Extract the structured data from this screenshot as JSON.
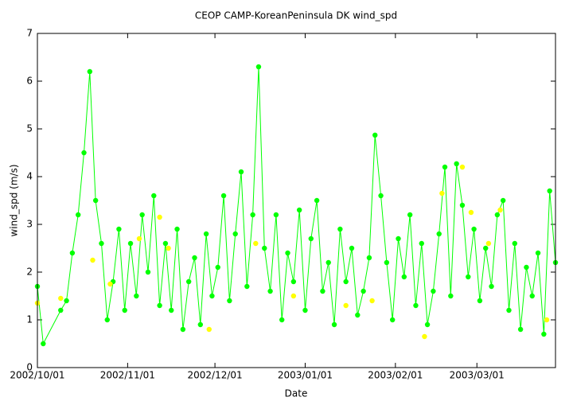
{
  "chart_data": {
    "type": "scatter",
    "title": "CEOP CAMP-KoreanPeninsula DK  wind_spd",
    "xlabel": "Date",
    "ylabel": "wind_spd (m/s)",
    "xlim": [
      "2002/10/01",
      "2003/03/28"
    ],
    "xticks": [
      "2002/10/01",
      "2002/11/01",
      "2002/12/01",
      "2003/01/01",
      "2003/02/01",
      "2003/03/01"
    ],
    "ylim": [
      0,
      7
    ],
    "yticks": [
      0,
      1,
      2,
      3,
      4,
      5,
      6,
      7
    ],
    "grid": false,
    "series": [
      {
        "color": "#00ff00",
        "mode": "lines+markers",
        "x": [
          "2002/10/01",
          "2002/10/03",
          "2002/10/09",
          "2002/10/11",
          "2002/10/13",
          "2002/10/15",
          "2002/10/17",
          "2002/10/19",
          "2002/10/21",
          "2002/10/23",
          "2002/10/25",
          "2002/10/27",
          "2002/10/29",
          "2002/10/31",
          "2002/11/02",
          "2002/11/04",
          "2002/11/06",
          "2002/11/08",
          "2002/11/10",
          "2002/11/12",
          "2002/11/14",
          "2002/11/16",
          "2002/11/18",
          "2002/11/20",
          "2002/11/22",
          "2002/11/24",
          "2002/11/26",
          "2002/11/28",
          "2002/11/30",
          "2002/12/02",
          "2002/12/04",
          "2002/12/06",
          "2002/12/08",
          "2002/12/10",
          "2002/12/12",
          "2002/12/14",
          "2002/12/16",
          "2002/12/18",
          "2002/12/20",
          "2002/12/22",
          "2002/12/24",
          "2002/12/26",
          "2002/12/28",
          "2002/12/30",
          "2003/01/01",
          "2003/01/03",
          "2003/01/05",
          "2003/01/07",
          "2003/01/09",
          "2003/01/11",
          "2003/01/13",
          "2003/01/15",
          "2003/01/17",
          "2003/01/19",
          "2003/01/21",
          "2003/01/23",
          "2003/01/25",
          "2003/01/27",
          "2003/01/29",
          "2003/01/31",
          "2003/02/02",
          "2003/02/04",
          "2003/02/06",
          "2003/02/08",
          "2003/02/10",
          "2003/02/12",
          "2003/02/14",
          "2003/02/16",
          "2003/02/18",
          "2003/02/20",
          "2003/02/22",
          "2003/02/24",
          "2003/02/26",
          "2003/02/28",
          "2003/03/02",
          "2003/03/04",
          "2003/03/06",
          "2003/03/08",
          "2003/03/10",
          "2003/03/12",
          "2003/03/14",
          "2003/03/16",
          "2003/03/18",
          "2003/03/20",
          "2003/03/22",
          "2003/03/24",
          "2003/03/26",
          "2003/03/28"
        ],
        "values": [
          1.7,
          0.5,
          1.2,
          1.4,
          2.4,
          3.2,
          4.5,
          6.2,
          3.5,
          2.6,
          1.0,
          1.8,
          2.9,
          1.2,
          2.6,
          1.5,
          3.2,
          2.0,
          3.6,
          1.3,
          2.6,
          1.2,
          2.9,
          0.8,
          1.8,
          2.3,
          0.9,
          2.8,
          1.5,
          2.1,
          3.6,
          1.4,
          2.8,
          4.1,
          1.7,
          3.2,
          6.3,
          2.5,
          1.6,
          3.2,
          1.0,
          2.4,
          1.8,
          3.3,
          1.2,
          2.7,
          3.5,
          1.6,
          2.2,
          0.9,
          2.9,
          1.8,
          2.5,
          1.1,
          1.6,
          2.3,
          4.87,
          3.6,
          2.2,
          1.0,
          2.7,
          1.9,
          3.2,
          1.3,
          2.6,
          0.9,
          1.6,
          2.8,
          4.2,
          1.5,
          4.27,
          3.4,
          1.9,
          2.9,
          1.4,
          2.5,
          1.7,
          3.2,
          3.5,
          1.2,
          2.6,
          0.8,
          2.1,
          1.5,
          2.4,
          0.7,
          3.7,
          2.2
        ]
      },
      {
        "color": "#ffff00",
        "mode": "markers",
        "x": [
          "2002/10/01",
          "2002/10/09",
          "2002/10/20",
          "2002/10/26",
          "2002/11/05",
          "2002/11/12",
          "2002/11/15",
          "2002/11/29",
          "2002/12/15",
          "2002/12/28",
          "2003/01/15",
          "2003/01/24",
          "2003/02/11",
          "2003/02/17",
          "2003/02/24",
          "2003/02/27",
          "2003/03/05",
          "2003/03/09",
          "2003/03/25"
        ],
        "values": [
          1.35,
          1.45,
          2.25,
          1.75,
          2.7,
          3.15,
          2.5,
          0.8,
          2.6,
          1.5,
          1.3,
          1.4,
          0.65,
          3.65,
          4.2,
          3.25,
          2.6,
          3.3,
          1.0
        ]
      }
    ]
  }
}
